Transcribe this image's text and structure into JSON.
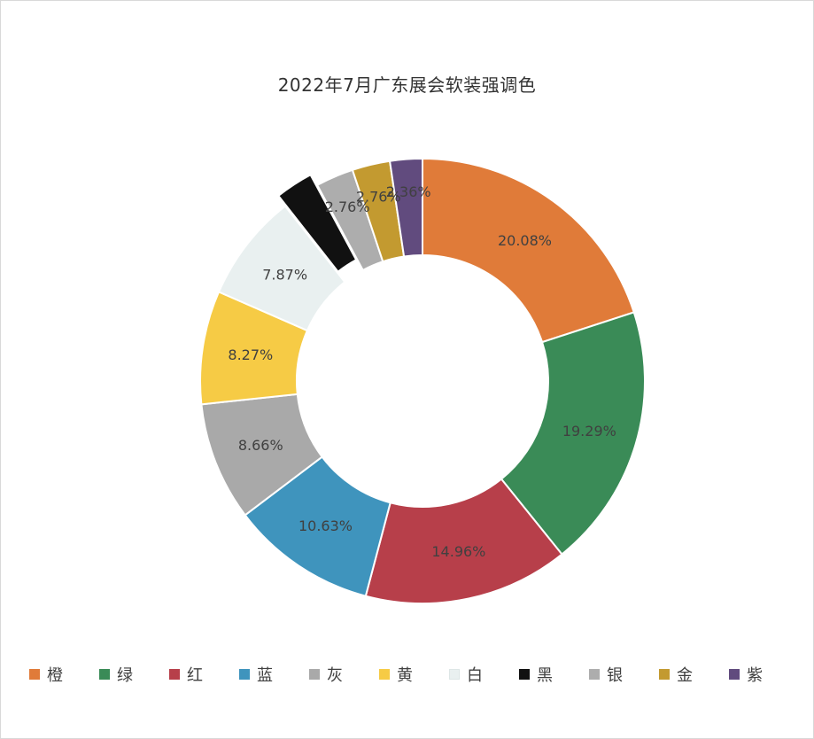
{
  "chart_data": {
    "type": "pie",
    "donut": true,
    "title": "2022年7月广东展会软装强调色",
    "categories": [
      "橙",
      "绿",
      "红",
      "蓝",
      "灰",
      "黄",
      "白",
      "黑",
      "银",
      "金",
      "紫"
    ],
    "values": [
      20.08,
      19.29,
      14.96,
      10.63,
      8.66,
      8.27,
      7.87,
      2.76,
      2.76,
      2.76,
      2.36
    ],
    "labels": [
      "20.08%",
      "19.29%",
      "14.96%",
      "10.63%",
      "8.66%",
      "8.27%",
      "7.87%",
      "",
      "2.76%",
      "2.76%",
      "2.36%"
    ],
    "colors": [
      "#e07b39",
      "#3a8b57",
      "#b73f4a",
      "#3f94bd",
      "#a9a9a9",
      "#f6cb45",
      "#e9f0f0",
      "#111111",
      "#adadad",
      "#c39a30",
      "#614b7e"
    ],
    "exploded": [
      "黑"
    ],
    "legend_position": "bottom"
  }
}
